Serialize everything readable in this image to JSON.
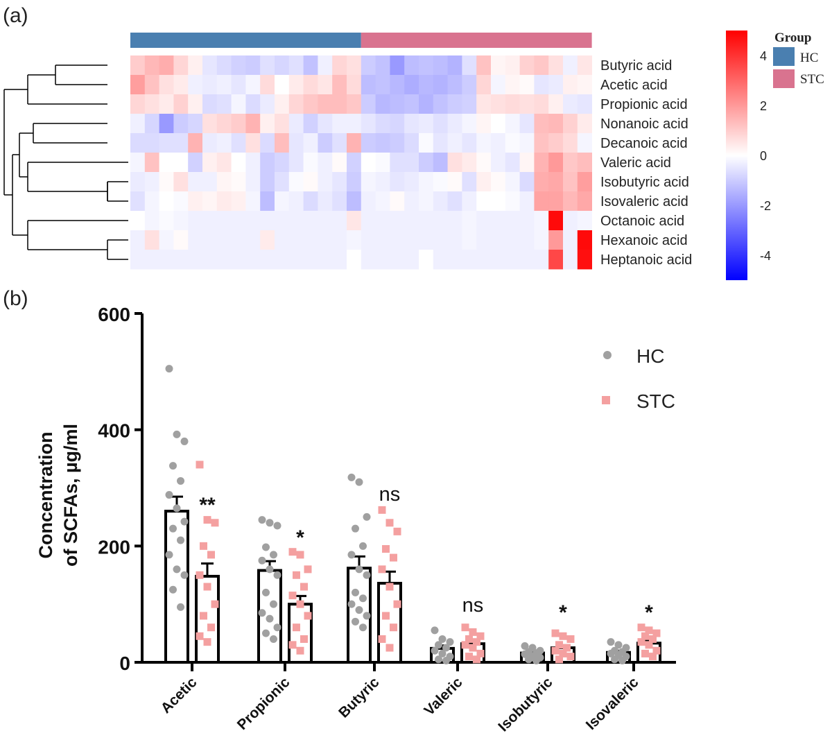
{
  "panel_labels": {
    "a": "(a)",
    "b": "(b)"
  },
  "chart_data": [
    {
      "type": "heatmap",
      "panel": "(a)",
      "row_labels": [
        "Butyric acid",
        "Acetic acid",
        "Propionic acid",
        "Nonanoic acid",
        "Decanoic acid",
        "Valeric acid",
        "Isobutyric acid",
        "Isovaleric acid",
        "Octanoic acid",
        "Hexanoic acid",
        "Heptanoic acid"
      ],
      "groups": [
        {
          "name": "HC",
          "count": 16,
          "color": "#4a7fb0"
        },
        {
          "name": "STC",
          "count": 16,
          "color": "#d9738f"
        }
      ],
      "legend_title": "Group",
      "color_scale": {
        "min": -5,
        "max": 5,
        "low": "#0000ff",
        "mid": "#ffffff",
        "high": "#ff0000",
        "ticks": [
          "4",
          "2",
          "0",
          "-2",
          "-4"
        ],
        "tick_values": [
          4,
          2,
          0,
          -2,
          -4
        ]
      },
      "values": [
        [
          1.0,
          1.4,
          1.6,
          0.8,
          0.3,
          -0.5,
          -0.7,
          -0.9,
          -1.0,
          -0.6,
          -0.8,
          -0.6,
          -1.2,
          -0.3,
          0.8,
          0.6,
          -1.0,
          -1.2,
          -2.0,
          -1.3,
          -1.2,
          -1.3,
          -1.5,
          -0.6,
          1.2,
          0.2,
          0.3,
          0.9,
          1.1,
          0.6,
          -0.3,
          0.5
        ],
        [
          1.9,
          1.2,
          0.6,
          0.4,
          -0.3,
          -0.4,
          -0.3,
          -0.5,
          -0.2,
          0.7,
          0.0,
          0.4,
          0.7,
          0.5,
          1.3,
          0.7,
          -1.3,
          -1.2,
          -1.4,
          -1.6,
          -1.4,
          -1.5,
          -1.3,
          -1.0,
          0.8,
          -0.2,
          0.2,
          0.1,
          -0.5,
          -0.4,
          0.3,
          0.2
        ],
        [
          0.8,
          0.6,
          0.4,
          0.9,
          0.3,
          -0.7,
          -0.6,
          -0.2,
          -0.7,
          -0.4,
          0.3,
          0.8,
          1.1,
          1.3,
          1.3,
          1.1,
          -1.0,
          -1.4,
          -1.3,
          -1.2,
          -1.5,
          -1.2,
          -1.0,
          -0.9,
          0.5,
          0.6,
          0.7,
          0.6,
          0.7,
          0.3,
          -0.4,
          -0.5
        ],
        [
          -0.3,
          -0.8,
          -2.0,
          -1.0,
          -0.8,
          0.6,
          0.8,
          1.0,
          1.5,
          0.3,
          0.6,
          -0.4,
          -0.9,
          -0.5,
          -0.3,
          -0.3,
          -0.5,
          -0.7,
          -0.8,
          -0.5,
          -0.4,
          -0.6,
          -0.4,
          -0.2,
          0.2,
          0.0,
          -0.2,
          -0.5,
          1.3,
          1.4,
          0.9,
          0.4
        ],
        [
          -0.7,
          -0.7,
          -0.6,
          -0.6,
          1.5,
          -0.4,
          -0.3,
          -0.6,
          0.6,
          -0.7,
          1.3,
          -0.5,
          -0.3,
          -1.0,
          -0.6,
          1.5,
          -1.0,
          -1.1,
          -1.0,
          -0.7,
          -0.1,
          -0.5,
          -0.3,
          -0.5,
          -0.2,
          -0.3,
          -0.1,
          -0.2,
          1.2,
          1.0,
          0.7,
          -0.2
        ],
        [
          -0.2,
          1.2,
          0.0,
          0.0,
          -0.9,
          0.3,
          0.5,
          0.0,
          -0.3,
          -1.0,
          -0.8,
          -0.5,
          -0.1,
          -0.3,
          0.1,
          -0.9,
          0.0,
          -0.1,
          -0.6,
          -0.6,
          -1.0,
          -1.3,
          0.6,
          0.4,
          0.1,
          -0.3,
          -0.5,
          0.2,
          1.5,
          2.0,
          1.1,
          1.3
        ],
        [
          -0.4,
          -0.3,
          0.1,
          0.6,
          -0.3,
          -0.3,
          0.2,
          0.1,
          -0.3,
          -1.0,
          -0.6,
          -0.1,
          0.1,
          -0.3,
          -0.5,
          -1.0,
          -0.2,
          -0.3,
          -0.5,
          -0.4,
          -0.2,
          -0.1,
          0.1,
          -0.6,
          0.3,
          0.1,
          -0.2,
          -0.7,
          1.6,
          1.7,
          1.2,
          1.9
        ],
        [
          -0.6,
          -0.2,
          0.0,
          -0.1,
          0.3,
          0.2,
          0.4,
          0.3,
          -0.2,
          -1.3,
          -0.2,
          -0.3,
          -0.7,
          -0.4,
          -0.6,
          -1.3,
          -0.3,
          -0.2,
          0.1,
          -0.3,
          -0.2,
          -0.4,
          -0.6,
          -0.3,
          0.0,
          0.0,
          -0.1,
          -0.3,
          1.8,
          1.8,
          1.4,
          1.7
        ],
        [
          0.0,
          -0.2,
          -0.1,
          -0.2,
          -0.3,
          -0.3,
          -0.3,
          -0.3,
          -0.3,
          -0.3,
          -0.3,
          -0.3,
          -0.3,
          -0.3,
          -0.3,
          0.5,
          -0.3,
          -0.3,
          -0.3,
          -0.3,
          -0.3,
          -0.3,
          -0.3,
          -0.2,
          -0.3,
          -0.3,
          -0.3,
          -0.3,
          -0.2,
          4.8,
          -0.3,
          -0.2
        ],
        [
          -0.3,
          0.6,
          -0.2,
          0.1,
          -0.3,
          -0.3,
          -0.3,
          -0.3,
          -0.3,
          0.4,
          -0.3,
          -0.3,
          -0.3,
          -0.3,
          -0.3,
          -0.2,
          -0.3,
          -0.3,
          -0.3,
          -0.3,
          -0.3,
          -0.3,
          -0.3,
          -0.2,
          -0.3,
          -0.3,
          -0.3,
          -0.3,
          -0.2,
          2.0,
          -0.3,
          4.8
        ],
        [
          -0.3,
          -0.3,
          -0.3,
          -0.3,
          -0.3,
          -0.3,
          -0.3,
          -0.3,
          -0.3,
          -0.3,
          -0.3,
          -0.3,
          -0.3,
          -0.3,
          -0.3,
          0.0,
          -0.3,
          -0.3,
          -0.3,
          -0.3,
          0.0,
          -0.3,
          -0.3,
          -0.3,
          -0.3,
          -0.3,
          -0.3,
          -0.3,
          -0.3,
          3.6,
          -0.3,
          4.7
        ]
      ]
    },
    {
      "type": "bar",
      "panel": "(b)",
      "ylabel_line1": "Concentration",
      "ylabel_line2": "of SCFAs, µg/ml",
      "ylim": [
        0,
        600
      ],
      "yticks": [
        "0",
        "200",
        "400",
        "600"
      ],
      "ytick_values": [
        0,
        200,
        400,
        600
      ],
      "categories": [
        "Acetic",
        "Propionic",
        "Butyric",
        "Valeric",
        "Isobutyric",
        "Isovaleric"
      ],
      "significance": [
        "**",
        "*",
        "ns",
        "ns",
        "*",
        "*"
      ],
      "legend": [
        {
          "name": "HC",
          "marker": "circle",
          "color": "#a0a0a0"
        },
        {
          "name": "STC",
          "marker": "square",
          "color": "#f4a0a0"
        }
      ],
      "series": [
        {
          "name": "HC",
          "means": [
            260,
            158,
            162,
            24,
            16,
            17
          ],
          "sem": [
            25,
            16,
            20,
            5,
            2,
            3
          ],
          "points": [
            [
              505,
              392,
              380,
              338,
              312,
              288,
              265,
              242,
              230,
              210,
              185,
              160,
              150,
              125,
              95
            ],
            [
              245,
              240,
              235,
              198,
              185,
              175,
              160,
              150,
              120,
              100,
              85,
              75,
              60,
              50,
              40
            ],
            [
              318,
              310,
              250,
              230,
              200,
              185,
              160,
              150,
              120,
              110,
              100,
              90,
              80,
              70,
              60
            ],
            [
              55,
              40,
              35,
              30,
              25,
              20,
              15,
              10,
              5,
              3
            ],
            [
              28,
              25,
              20,
              18,
              16,
              14,
              10,
              8,
              5,
              3
            ],
            [
              35,
              30,
              25,
              20,
              18,
              15,
              12,
              10,
              5,
              3
            ]
          ]
        },
        {
          "name": "STC",
          "means": [
            148,
            100,
            136,
            32,
            25,
            33
          ],
          "sem": [
            22,
            14,
            20,
            6,
            4,
            5
          ],
          "points": [
            [
              340,
              245,
              240,
              200,
              185,
              150,
              130,
              100,
              80,
              60,
              45,
              35
            ],
            [
              190,
              185,
              160,
              150,
              130,
              115,
              100,
              80,
              60,
              40,
              30,
              20
            ],
            [
              262,
              240,
              225,
              195,
              180,
              160,
              130,
              100,
              80,
              60,
              40,
              25
            ],
            [
              60,
              52,
              45,
              40,
              35,
              30,
              25,
              15,
              10,
              5
            ],
            [
              50,
              45,
              40,
              30,
              25,
              20,
              15,
              10,
              5
            ],
            [
              60,
              55,
              50,
              45,
              40,
              35,
              30,
              20,
              15,
              10
            ]
          ]
        }
      ]
    }
  ]
}
